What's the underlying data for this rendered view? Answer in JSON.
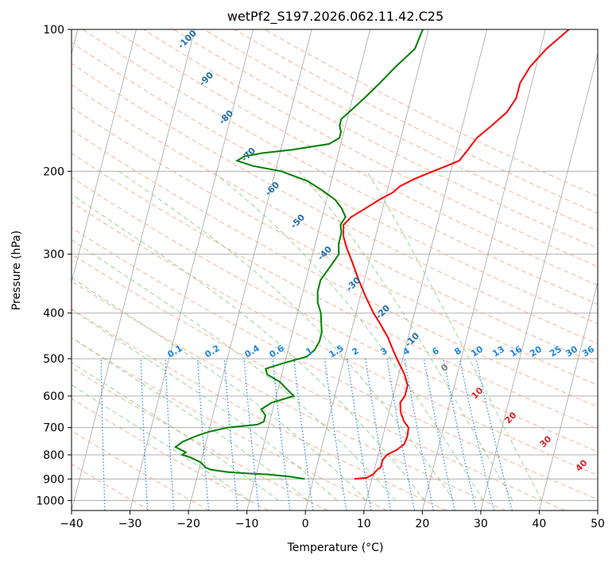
{
  "chart_data": {
    "type": "line",
    "title": "wetPf2_S197.2026.062.11.42.C25",
    "xlabel": "Temperature (°C)",
    "ylabel": "Pressure (hPa)",
    "xlim": [
      -40,
      50
    ],
    "ylim": [
      1050,
      100
    ],
    "y_scale": "log",
    "grid": true,
    "x_ticks": [
      "−40",
      "−30",
      "−20",
      "−10",
      "0",
      "10",
      "20",
      "30",
      "40",
      "50"
    ],
    "y_ticks": [
      "100",
      "200",
      "300",
      "400",
      "500",
      "600",
      "700",
      "800",
      "900",
      "1000"
    ],
    "series": [
      {
        "color": "#ff0000",
        "pressure": [
          900,
          895,
          880,
          860,
          850,
          820,
          800,
          780,
          760,
          730,
          700,
          680,
          650,
          620,
          600,
          570,
          540,
          510,
          480,
          450,
          420,
          400,
          370,
          340,
          310,
          290,
          275,
          260,
          250,
          240,
          230,
          222,
          215,
          208,
          200,
          195,
          190,
          180,
          170,
          160,
          150,
          140,
          130,
          120,
          110,
          100
        ],
        "values": [
          7,
          9,
          10,
          10.5,
          11,
          11,
          11.5,
          13,
          14,
          14.2,
          14,
          13,
          12,
          11.5,
          12,
          12,
          11,
          9.5,
          8,
          6.5,
          4.5,
          3,
          1,
          -1,
          -3,
          -4.5,
          -5.5,
          -6,
          -5,
          -3,
          -1,
          1,
          2,
          4,
          7,
          9,
          11,
          12,
          13,
          15,
          17,
          18,
          18,
          19,
          21,
          24
        ]
      },
      {
        "color": "#008000",
        "pressure": [
          900,
          890,
          880,
          875,
          870,
          860,
          850,
          830,
          810,
          800,
          790,
          770,
          750,
          730,
          715,
          700,
          690,
          680,
          660,
          640,
          620,
          600,
          580,
          560,
          540,
          525,
          510,
          495,
          480,
          460,
          440,
          420,
          400,
          380,
          360,
          340,
          320,
          300,
          285,
          270,
          260,
          250,
          240,
          230,
          220,
          210,
          200,
          195,
          190,
          186,
          183,
          180,
          175,
          170,
          165,
          160,
          155,
          150,
          140,
          130,
          120,
          110,
          100
        ],
        "values": [
          -1.5,
          -4,
          -8,
          -12,
          -15,
          -18,
          -19,
          -20,
          -22,
          -23.5,
          -23,
          -25,
          -24,
          -22,
          -20,
          -17,
          -12,
          -11,
          -11,
          -12,
          -10.5,
          -7,
          -8.5,
          -10,
          -12.5,
          -13,
          -10,
          -6.5,
          -5.5,
          -5,
          -5,
          -5.5,
          -6,
          -7,
          -7.5,
          -7.5,
          -6.5,
          -5.5,
          -6,
          -6,
          -6.5,
          -6,
          -7,
          -8.5,
          -11,
          -14,
          -19,
          -24,
          -27,
          -26,
          -23,
          -18,
          -12,
          -10.5,
          -10.5,
          -11,
          -11,
          -10,
          -8,
          -6,
          -4,
          -1.5,
          -1
        ]
      }
    ],
    "dry_adiabat_labels": [
      "-100",
      "-90",
      "-80",
      "-70",
      "-60",
      "-50",
      "-40",
      "-30",
      "-20",
      "-10",
      "0",
      "10",
      "20",
      "30",
      "40"
    ],
    "mixing_ratio_labels": [
      "0.1",
      "0.2",
      "0.4",
      "0.6",
      "1",
      "1.5",
      "2",
      "3",
      "4",
      "6",
      "8",
      "10",
      "13",
      "16",
      "20",
      "25",
      "30",
      "36"
    ],
    "colors": {
      "temperature": "#ff0000",
      "dewpoint": "#008000",
      "isotherm": "#808080",
      "dry_adiabat": "#f4a582",
      "moist_adiabat": "#7fc97f",
      "mixing_ratio": "#1e88e5",
      "label_cold": "#1f6fb0",
      "label_warm": "#d62728",
      "label_zero": "#808080"
    }
  }
}
